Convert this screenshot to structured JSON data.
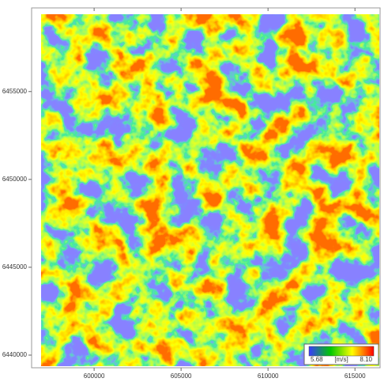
{
  "map": {
    "xlim": [
      596950,
      616400
    ],
    "ylim": [
      6439370,
      6459400
    ],
    "xticks": [
      600000,
      605000,
      610000,
      615000
    ],
    "yticks": [
      6440000,
      6445000,
      6450000,
      6455000
    ],
    "colorbar": {
      "min": 5.68,
      "max": {
        "value": 8.1,
        "label": "8.10"
      },
      "unit": "[m/s]",
      "colors": [
        "#3a3aff",
        "#00c800",
        "#ffff00",
        "#ff0000"
      ]
    }
  }
}
